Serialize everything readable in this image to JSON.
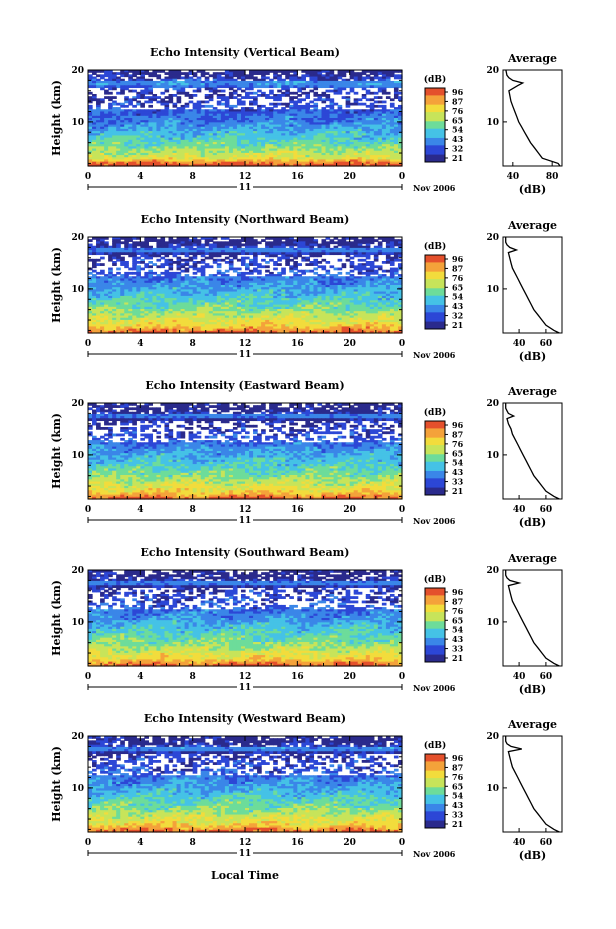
{
  "figure": {
    "xlabel": "Local Time",
    "ylabel": "Height (km)",
    "date_label": "Nov 2006",
    "day_label": "11",
    "cbar_label": "(dB)",
    "avg_title": "Average",
    "avg_xlabel": "(dB)"
  },
  "chart_data": [
    {
      "type": "heatmap",
      "title": "Echo Intensity (Vertical Beam)",
      "xlabel": "Local Time",
      "ylabel": "Height (km)",
      "x_ticks": [
        "0",
        "4",
        "8",
        "12",
        "16",
        "20",
        "0"
      ],
      "y_ticks": [
        "10",
        "20"
      ],
      "xlim": [
        0,
        24
      ],
      "ylim": [
        1.5,
        20
      ],
      "colorbar": {
        "label": "(dB)",
        "ticks": [
          "96",
          "87",
          "76",
          "65",
          "54",
          "43",
          "32",
          "21"
        ],
        "range": [
          21,
          96
        ]
      },
      "profile": {
        "title": "Average",
        "xlabel": "(dB)",
        "x_ticks": [
          "40",
          "80"
        ],
        "y_ticks": [
          "10",
          "20"
        ],
        "xlim": [
          30,
          90
        ],
        "height_km": [
          1.5,
          2,
          3,
          4,
          5,
          6,
          7,
          8,
          9,
          10,
          11,
          12,
          13,
          14,
          15,
          16,
          17,
          17.5,
          18,
          18.5,
          19,
          20
        ],
        "db": [
          88,
          86,
          70,
          66,
          62,
          58,
          55,
          52,
          49,
          46,
          44,
          42,
          40,
          38,
          37,
          36,
          45,
          50,
          40,
          36,
          34,
          33
        ]
      }
    },
    {
      "type": "heatmap",
      "title": "Echo Intensity (Northward Beam)",
      "xlabel": "Local Time",
      "ylabel": "Height (km)",
      "x_ticks": [
        "0",
        "4",
        "8",
        "12",
        "16",
        "20",
        "0"
      ],
      "y_ticks": [
        "10",
        "20"
      ],
      "xlim": [
        0,
        24
      ],
      "ylim": [
        1.5,
        20
      ],
      "colorbar": {
        "label": "(dB)",
        "ticks": [
          "96",
          "87",
          "76",
          "65",
          "54",
          "43",
          "32",
          "21"
        ],
        "range": [
          21,
          96
        ]
      },
      "profile": {
        "title": "Average",
        "xlabel": "(dB)",
        "x_ticks": [
          "40",
          "60"
        ],
        "y_ticks": [
          "10",
          "20"
        ],
        "xlim": [
          28,
          72
        ],
        "height_km": [
          1.5,
          2,
          3,
          4,
          5,
          6,
          7,
          8,
          9,
          10,
          11,
          12,
          13,
          14,
          15,
          16,
          17,
          17.5,
          18,
          18.5,
          19,
          20
        ],
        "db": [
          70,
          66,
          60,
          57,
          54,
          51,
          49,
          47,
          45,
          43,
          41,
          39,
          37,
          35,
          34,
          33,
          32,
          38,
          33,
          31,
          30,
          30
        ]
      }
    },
    {
      "type": "heatmap",
      "title": "Echo Intensity (Eastward Beam)",
      "xlabel": "Local Time",
      "ylabel": "Height (km)",
      "x_ticks": [
        "0",
        "4",
        "8",
        "12",
        "16",
        "20",
        "0"
      ],
      "y_ticks": [
        "10",
        "20"
      ],
      "xlim": [
        0,
        24
      ],
      "ylim": [
        1.5,
        20
      ],
      "colorbar": {
        "label": "(dB)",
        "ticks": [
          "96",
          "87",
          "76",
          "65",
          "54",
          "43",
          "33",
          "21"
        ],
        "range": [
          21,
          96
        ]
      },
      "profile": {
        "title": "Average",
        "xlabel": "(dB)",
        "x_ticks": [
          "40",
          "60"
        ],
        "y_ticks": [
          "10",
          "20"
        ],
        "xlim": [
          28,
          72
        ],
        "height_km": [
          1.5,
          2,
          3,
          4,
          5,
          6,
          7,
          8,
          9,
          10,
          11,
          12,
          13,
          14,
          15,
          16,
          17,
          17.5,
          18,
          18.5,
          19,
          20
        ],
        "db": [
          70,
          66,
          60,
          57,
          54,
          51,
          49,
          47,
          45,
          43,
          41,
          39,
          37,
          35,
          34,
          32,
          31,
          36,
          32,
          31,
          30,
          30
        ]
      }
    },
    {
      "type": "heatmap",
      "title": "Echo Intensity (Southward Beam)",
      "xlabel": "Local Time",
      "ylabel": "Height (km)",
      "x_ticks": [
        "0",
        "4",
        "8",
        "12",
        "16",
        "20",
        "0"
      ],
      "y_ticks": [
        "10",
        "20"
      ],
      "xlim": [
        0,
        24
      ],
      "ylim": [
        1.5,
        20
      ],
      "colorbar": {
        "label": "(dB)",
        "ticks": [
          "96",
          "87",
          "76",
          "65",
          "54",
          "43",
          "33",
          "21"
        ],
        "range": [
          21,
          96
        ]
      },
      "profile": {
        "title": "Average",
        "xlabel": "(dB)",
        "x_ticks": [
          "40",
          "60"
        ],
        "y_ticks": [
          "10",
          "20"
        ],
        "xlim": [
          28,
          72
        ],
        "height_km": [
          1.5,
          2,
          3,
          4,
          5,
          6,
          7,
          8,
          9,
          10,
          11,
          12,
          13,
          14,
          15,
          16,
          17,
          17.5,
          18,
          18.5,
          19,
          20
        ],
        "db": [
          70,
          66,
          60,
          57,
          54,
          51,
          49,
          47,
          45,
          43,
          41,
          39,
          37,
          35,
          34,
          33,
          32,
          40,
          33,
          31,
          30,
          30
        ]
      }
    },
    {
      "type": "heatmap",
      "title": "Echo Intensity (Westward Beam)",
      "xlabel": "Local Time",
      "ylabel": "Height (km)",
      "x_ticks": [
        "0",
        "4",
        "8",
        "12",
        "16",
        "20",
        "0"
      ],
      "y_ticks": [
        "10",
        "20"
      ],
      "xlim": [
        0,
        24
      ],
      "ylim": [
        1.5,
        20
      ],
      "colorbar": {
        "label": "(dB)",
        "ticks": [
          "96",
          "87",
          "76",
          "65",
          "54",
          "43",
          "33",
          "21"
        ],
        "range": [
          21,
          96
        ]
      },
      "profile": {
        "title": "Average",
        "xlabel": "(dB)",
        "x_ticks": [
          "40",
          "60"
        ],
        "y_ticks": [
          "10",
          "20"
        ],
        "xlim": [
          28,
          72
        ],
        "height_km": [
          1.5,
          2,
          3,
          4,
          5,
          6,
          7,
          8,
          9,
          10,
          11,
          12,
          13,
          14,
          15,
          16,
          17,
          17.5,
          18,
          18.5,
          19,
          20
        ],
        "db": [
          70,
          66,
          60,
          57,
          54,
          51,
          49,
          47,
          45,
          43,
          41,
          39,
          37,
          35,
          34,
          33,
          32,
          42,
          34,
          31,
          30,
          30
        ]
      }
    }
  ],
  "colors": {
    "colormap": [
      "#2a2a8c",
      "#2c47d6",
      "#3a86e8",
      "#45c2e6",
      "#6ddc9a",
      "#c7e45a",
      "#f2dc3c",
      "#f4a23a",
      "#e4502c"
    ],
    "axis": "#000000",
    "gap": "#ffffff"
  }
}
